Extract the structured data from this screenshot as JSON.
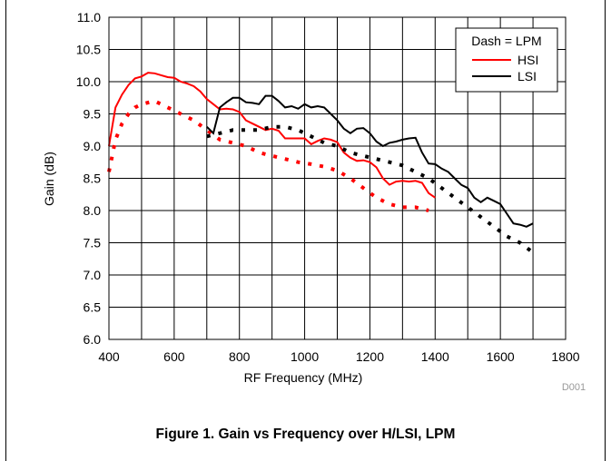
{
  "figure_caption": "Figure 1. Gain vs Frequency over H/LSI, LPM",
  "figure_code": "D001",
  "chart_data": {
    "type": "line",
    "xlabel": "RF Frequency (MHz)",
    "ylabel": "Gain (dB)",
    "xlim": [
      400,
      1800
    ],
    "ylim": [
      6.0,
      11.0
    ],
    "xticks": [
      "400",
      "600",
      "800",
      "1000",
      "1200",
      "1400",
      "1600",
      "1800"
    ],
    "yticks": [
      "6.0",
      "6.5",
      "7.0",
      "7.5",
      "8.0",
      "8.5",
      "9.0",
      "9.5",
      "10.0",
      "10.5",
      "11.0"
    ],
    "grid": true,
    "legend": {
      "title": "Dash = LPM",
      "placement": "top-right",
      "entries": [
        {
          "label": "HSI",
          "color": "#ff0000"
        },
        {
          "label": "LSI",
          "color": "#000000"
        }
      ]
    },
    "series": [
      {
        "label": "HSI",
        "style": "solid",
        "color": "#ff0000",
        "x": [
          400,
          420,
          440,
          460,
          480,
          500,
          520,
          540,
          560,
          580,
          600,
          620,
          640,
          660,
          680,
          700,
          720,
          740,
          760,
          780,
          800,
          820,
          840,
          860,
          880,
          900,
          920,
          940,
          960,
          980,
          1000,
          1020,
          1040,
          1060,
          1080,
          1100,
          1120,
          1140,
          1160,
          1180,
          1200,
          1220,
          1240,
          1260,
          1280,
          1300,
          1320,
          1340,
          1360,
          1380,
          1400
        ],
        "y": [
          9.0,
          9.6,
          9.8,
          9.95,
          10.05,
          10.08,
          10.14,
          10.13,
          10.1,
          10.07,
          10.06,
          10.0,
          9.97,
          9.93,
          9.85,
          9.73,
          9.65,
          9.57,
          9.58,
          9.57,
          9.53,
          9.4,
          9.35,
          9.3,
          9.25,
          9.27,
          9.24,
          9.12,
          9.12,
          9.12,
          9.12,
          9.03,
          9.08,
          9.12,
          9.1,
          9.06,
          8.9,
          8.82,
          8.77,
          8.78,
          8.75,
          8.67,
          8.5,
          8.4,
          8.45,
          8.46,
          8.45,
          8.46,
          8.43,
          8.27,
          8.2
        ]
      },
      {
        "label": "HSI LPM",
        "style": "dotted",
        "color": "#ff0000",
        "x": [
          400,
          420,
          440,
          460,
          480,
          500,
          540,
          580,
          620,
          660,
          700,
          740,
          780,
          820,
          860,
          900,
          940,
          980,
          1020,
          1060,
          1100,
          1140,
          1180,
          1220,
          1260,
          1300,
          1340,
          1380
        ],
        "y": [
          8.6,
          9.1,
          9.35,
          9.5,
          9.6,
          9.65,
          9.7,
          9.6,
          9.5,
          9.4,
          9.25,
          9.1,
          9.05,
          9.0,
          8.9,
          8.85,
          8.8,
          8.75,
          8.72,
          8.68,
          8.62,
          8.5,
          8.35,
          8.2,
          8.1,
          8.05,
          8.05,
          8.0
        ]
      },
      {
        "label": "LSI",
        "style": "solid",
        "color": "#000000",
        "x": [
          700,
          720,
          740,
          760,
          780,
          800,
          820,
          840,
          860,
          880,
          900,
          920,
          940,
          960,
          980,
          1000,
          1020,
          1040,
          1060,
          1080,
          1100,
          1120,
          1140,
          1160,
          1180,
          1200,
          1220,
          1240,
          1260,
          1280,
          1300,
          1320,
          1340,
          1360,
          1380,
          1400,
          1420,
          1440,
          1460,
          1480,
          1500,
          1520,
          1540,
          1560,
          1580,
          1600,
          1620,
          1640,
          1660,
          1680,
          1700
        ],
        "y": [
          9.3,
          9.2,
          9.6,
          9.68,
          9.75,
          9.75,
          9.68,
          9.67,
          9.65,
          9.78,
          9.78,
          9.7,
          9.6,
          9.62,
          9.58,
          9.65,
          9.6,
          9.62,
          9.6,
          9.5,
          9.4,
          9.27,
          9.2,
          9.27,
          9.28,
          9.2,
          9.07,
          9.0,
          9.05,
          9.07,
          9.1,
          9.12,
          9.13,
          8.9,
          8.73,
          8.72,
          8.65,
          8.6,
          8.5,
          8.4,
          8.35,
          8.2,
          8.13,
          8.2,
          8.15,
          8.1,
          7.95,
          7.8,
          7.78,
          7.75,
          7.8
        ]
      },
      {
        "label": "LSI LPM",
        "style": "dotted",
        "color": "#000000",
        "x": [
          700,
          740,
          780,
          820,
          860,
          900,
          940,
          980,
          1020,
          1060,
          1100,
          1140,
          1180,
          1220,
          1260,
          1300,
          1340,
          1380,
          1420,
          1460,
          1500,
          1540,
          1580,
          1620,
          1660,
          1700
        ],
        "y": [
          9.15,
          9.2,
          9.25,
          9.25,
          9.25,
          9.3,
          9.3,
          9.25,
          9.15,
          9.05,
          9.0,
          8.9,
          8.85,
          8.8,
          8.75,
          8.7,
          8.6,
          8.5,
          8.35,
          8.2,
          8.05,
          7.9,
          7.75,
          7.6,
          7.5,
          7.35
        ]
      }
    ]
  }
}
